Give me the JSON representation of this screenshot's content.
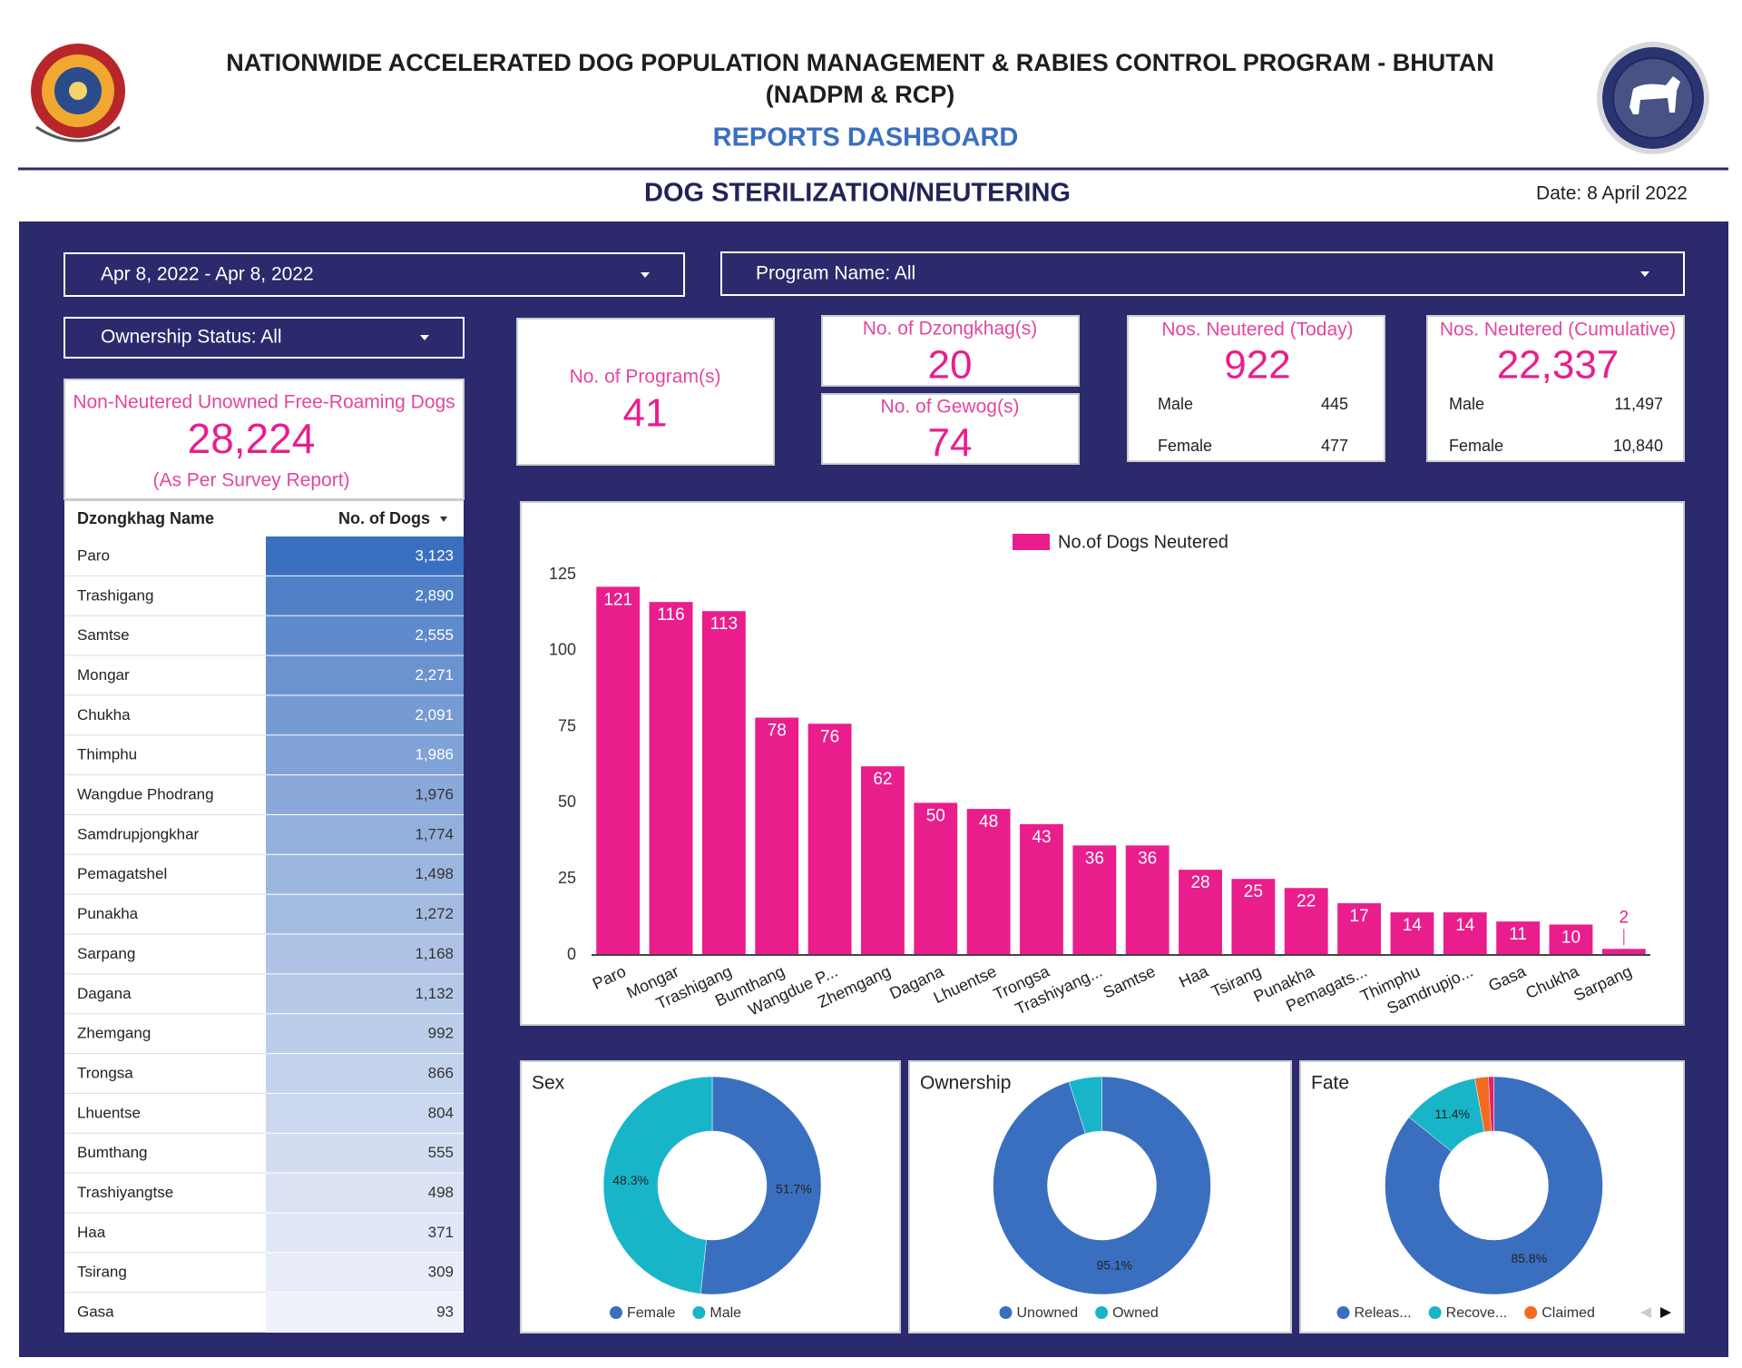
{
  "header": {
    "title": "NATIONWIDE ACCELERATED DOG POPULATION MANAGEMENT & RABIES CONTROL PROGRAM - BHUTAN",
    "subtitle": "(NADPM & RCP)",
    "dashboard": "REPORTS DASHBOARD",
    "section": "DOG STERILIZATION/NEUTERING",
    "date": "Date: 8 April 2022"
  },
  "filters": {
    "date_range": "Apr 8, 2022 - Apr 8, 2022",
    "program": "Program Name: All",
    "ownership": "Ownership Status: All"
  },
  "kpis": {
    "programs": {
      "label": "No. of Program(s)",
      "value": 41
    },
    "dzongkhags": {
      "label": "No. of Dzongkhag(s)",
      "value": 20
    },
    "gewogs": {
      "label": "No. of Gewog(s)",
      "value": 74
    },
    "today": {
      "label": "Nos. Neutered (Today)",
      "value": 922,
      "male_label": "Male",
      "male": 445,
      "female_label": "Female",
      "female": 477
    },
    "cumulative": {
      "label": "Nos. Neutered (Cumulative)",
      "value": "22,337",
      "male_label": "Male",
      "male": "11,497",
      "female_label": "Female",
      "female": "10,840"
    },
    "survey": {
      "label": "Non-Neutered Unowned Free-Roaming Dogs",
      "value": "28,224",
      "note": "(As Per Survey Report)"
    }
  },
  "table": {
    "columns": [
      "Dzongkhag Name",
      "No. of Dogs"
    ],
    "rows": [
      [
        "Paro",
        "3,123"
      ],
      [
        "Trashigang",
        "2,890"
      ],
      [
        "Samtse",
        "2,555"
      ],
      [
        "Mongar",
        "2,271"
      ],
      [
        "Chukha",
        "2,091"
      ],
      [
        "Thimphu",
        "1,986"
      ],
      [
        "Wangdue Phodrang",
        "1,976"
      ],
      [
        "Samdrupjongkhar",
        "1,774"
      ],
      [
        "Pemagatshel",
        "1,498"
      ],
      [
        "Punakha",
        "1,272"
      ],
      [
        "Sarpang",
        "1,168"
      ],
      [
        "Dagana",
        "1,132"
      ],
      [
        "Zhemgang",
        "992"
      ],
      [
        "Trongsa",
        "866"
      ],
      [
        "Lhuentse",
        "804"
      ],
      [
        "Bumthang",
        "555"
      ],
      [
        "Trashiyangtse",
        "498"
      ],
      [
        "Haa",
        "371"
      ],
      [
        "Tsirang",
        "309"
      ],
      [
        "Gasa",
        "93"
      ]
    ]
  },
  "chart_data": [
    {
      "type": "bar",
      "categories": [
        "Paro",
        "Mongar",
        "Trashigang",
        "Bumthang",
        "Wangdue P...",
        "Zhemgang",
        "Dagana",
        "Lhuentse",
        "Trongsa",
        "Trashiyang...",
        "Samtse",
        "Haa",
        "Tsirang",
        "Punakha",
        "Pemagats...",
        "Thimphu",
        "Samdrupjo...",
        "Gasa",
        "Chukha",
        "Sarpang"
      ],
      "series": [
        {
          "name": "No.of Dogs Neutered",
          "color": "#e91e8c",
          "values": [
            121,
            116,
            113,
            78,
            76,
            62,
            50,
            48,
            43,
            36,
            36,
            28,
            25,
            22,
            17,
            14,
            14,
            11,
            10,
            2
          ]
        }
      ],
      "ylim": [
        0,
        125
      ],
      "yticks": [
        0,
        25,
        50,
        75,
        100,
        125
      ],
      "grid": false,
      "legend": "top"
    },
    {
      "type": "donut",
      "title": "Sex",
      "categories": [
        "Female",
        "Male"
      ],
      "values": [
        51.7,
        48.3
      ],
      "value_labels": [
        "51.7%",
        "48.3%"
      ],
      "colors": [
        "#3a6fc0",
        "#18b5c9"
      ],
      "legend": "bottom"
    },
    {
      "type": "donut",
      "title": "Ownership",
      "categories": [
        "Unowned",
        "Owned"
      ],
      "values": [
        95.1,
        4.9
      ],
      "value_labels": [
        "95.1%",
        null
      ],
      "colors": [
        "#3a6fc0",
        "#18b5c9"
      ],
      "legend": "bottom"
    },
    {
      "type": "donut",
      "title": "Fate",
      "categories": [
        "Releas...",
        "Recove...",
        "Claimed",
        null
      ],
      "values": [
        85.8,
        11.4,
        2.0,
        0.8
      ],
      "value_labels": [
        "85.8%",
        "11.4%",
        null,
        null
      ],
      "colors": [
        "#3a6fc0",
        "#18b5c9",
        "#f26b21",
        "#e91e63"
      ],
      "legend": "bottom"
    }
  ]
}
